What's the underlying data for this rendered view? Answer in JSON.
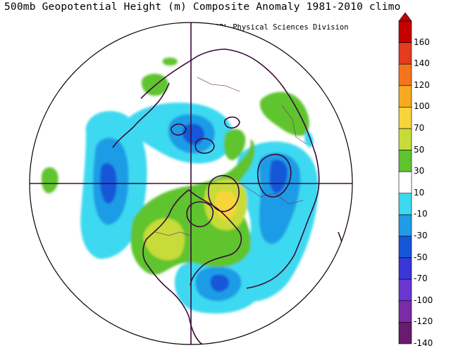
{
  "title": "500mb Geopotential Height (m) Composite Anomaly 1981-2010 climo",
  "credit": "NOAA/ESRL Physical Sciences Division",
  "colorbar": {
    "labels": [
      "160",
      "140",
      "120",
      "100",
      "70",
      "50",
      "30",
      "10",
      "-10",
      "-30",
      "-50",
      "-70",
      "-100",
      "-120",
      "-140"
    ],
    "colors": [
      "#c40000",
      "#e53b1e",
      "#f4741e",
      "#f7a91f",
      "#f8d43b",
      "#c7dc38",
      "#5ec42f",
      "#ffffff",
      "#3dd9f0",
      "#1f9ce6",
      "#1657d9",
      "#3a36d8",
      "#6a36d0",
      "#7c2aa8",
      "#6a1a70"
    ]
  },
  "map": {
    "projection": "north-polar-stereographic",
    "anomaly_features": [
      {
        "id": "alaska-blue-low",
        "sign": "negative",
        "peak_value": -50
      },
      {
        "id": "arctic-blue-low",
        "sign": "negative",
        "peak_value": -50
      },
      {
        "id": "scandinavia-blue-low",
        "sign": "negative",
        "peak_value": -30
      },
      {
        "id": "north-atlantic-blue-low",
        "sign": "negative",
        "peak_value": -30
      },
      {
        "id": "hudson-bay-green-high",
        "sign": "positive",
        "peak_value": 70
      },
      {
        "id": "pacific-green-high",
        "sign": "positive",
        "peak_value": 50
      },
      {
        "id": "siberia-green-high",
        "sign": "positive",
        "peak_value": 30
      }
    ]
  }
}
